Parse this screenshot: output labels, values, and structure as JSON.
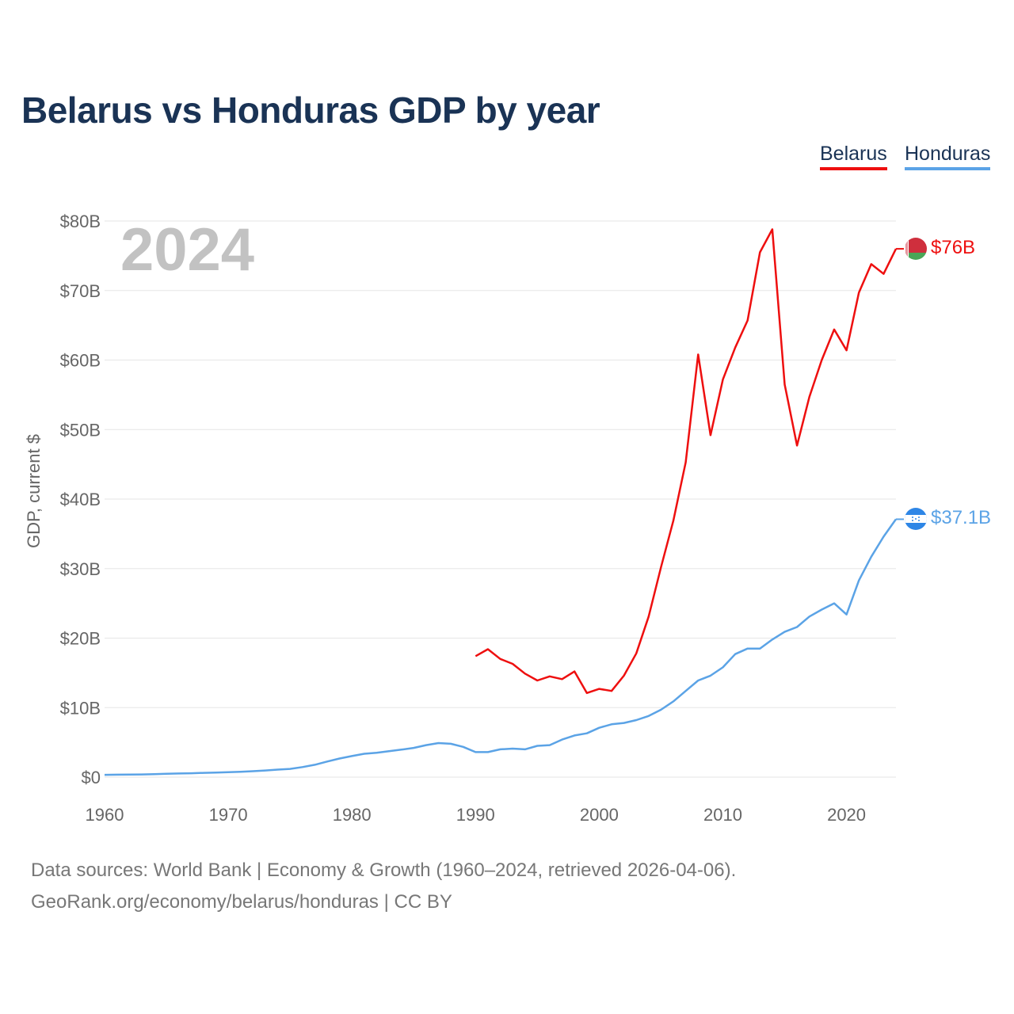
{
  "title": "Belarus vs Honduras GDP by year",
  "year_label": "2024",
  "legend": [
    {
      "name": "Belarus",
      "color": "#ee0f0f"
    },
    {
      "name": "Honduras",
      "color": "#5ba3e6"
    }
  ],
  "source_line1": "Data sources: World Bank | Economy & Growth (1960–2024, retrieved 2026-04-06).",
  "source_line2": "GeoRank.org/economy/belarus/honduras | CC BY",
  "chart_data": {
    "type": "line",
    "title": "Belarus vs Honduras GDP by year",
    "xlabel": "",
    "ylabel": "GDP, current $",
    "xlim": [
      1960,
      2024
    ],
    "ylim": [
      0,
      80
    ],
    "x_ticks": [
      1960,
      1970,
      1980,
      1990,
      2000,
      2010,
      2020
    ],
    "y_ticks": [
      {
        "value": 0,
        "label": "$0"
      },
      {
        "value": 10,
        "label": "$10B"
      },
      {
        "value": 20,
        "label": "$20B"
      },
      {
        "value": 30,
        "label": "$30B"
      },
      {
        "value": 40,
        "label": "$40B"
      },
      {
        "value": 50,
        "label": "$50B"
      },
      {
        "value": 60,
        "label": "$60B"
      },
      {
        "value": 70,
        "label": "$70B"
      },
      {
        "value": 80,
        "label": "$80B"
      }
    ],
    "series": [
      {
        "name": "Belarus",
        "color": "#ee0f0f",
        "end_label": "$76B",
        "x": [
          1990,
          1991,
          1992,
          1993,
          1994,
          1995,
          1996,
          1997,
          1998,
          1999,
          2000,
          2001,
          2002,
          2003,
          2004,
          2005,
          2006,
          2007,
          2008,
          2009,
          2010,
          2011,
          2012,
          2013,
          2014,
          2015,
          2016,
          2017,
          2018,
          2019,
          2020,
          2021,
          2022,
          2023,
          2024
        ],
        "values": [
          17.4,
          18.4,
          17.0,
          16.3,
          14.9,
          13.9,
          14.5,
          14.1,
          15.2,
          12.1,
          12.7,
          12.4,
          14.6,
          17.8,
          23.1,
          30.2,
          36.9,
          45.3,
          60.8,
          49.2,
          57.2,
          61.8,
          65.7,
          75.5,
          78.8,
          56.5,
          47.7,
          54.7,
          60.0,
          64.4,
          61.4,
          69.7,
          73.8,
          72.4,
          76.0
        ]
      },
      {
        "name": "Honduras",
        "color": "#5ba3e6",
        "end_label": "$37.1B",
        "x": [
          1960,
          1961,
          1962,
          1963,
          1964,
          1965,
          1966,
          1967,
          1968,
          1969,
          1970,
          1971,
          1972,
          1973,
          1974,
          1975,
          1976,
          1977,
          1978,
          1979,
          1980,
          1981,
          1982,
          1983,
          1984,
          1985,
          1986,
          1987,
          1988,
          1989,
          1990,
          1991,
          1992,
          1993,
          1994,
          1995,
          1996,
          1997,
          1998,
          1999,
          2000,
          2001,
          2002,
          2003,
          2004,
          2005,
          2006,
          2007,
          2008,
          2009,
          2010,
          2011,
          2012,
          2013,
          2014,
          2015,
          2016,
          2017,
          2018,
          2019,
          2020,
          2021,
          2022,
          2023,
          2024
        ],
        "values": [
          0.33,
          0.35,
          0.37,
          0.39,
          0.43,
          0.48,
          0.52,
          0.56,
          0.62,
          0.66,
          0.72,
          0.77,
          0.85,
          0.96,
          1.08,
          1.19,
          1.45,
          1.78,
          2.25,
          2.68,
          3.03,
          3.36,
          3.51,
          3.73,
          3.95,
          4.2,
          4.6,
          4.9,
          4.8,
          4.35,
          3.6,
          3.6,
          4.0,
          4.1,
          4.0,
          4.5,
          4.6,
          5.4,
          6.0,
          6.3,
          7.1,
          7.6,
          7.8,
          8.2,
          8.8,
          9.7,
          10.9,
          12.4,
          13.9,
          14.6,
          15.8,
          17.7,
          18.5,
          18.5,
          19.8,
          20.9,
          21.6,
          23.1,
          24.1,
          25.0,
          23.4,
          28.3,
          31.7,
          34.6,
          37.1
        ]
      }
    ]
  }
}
